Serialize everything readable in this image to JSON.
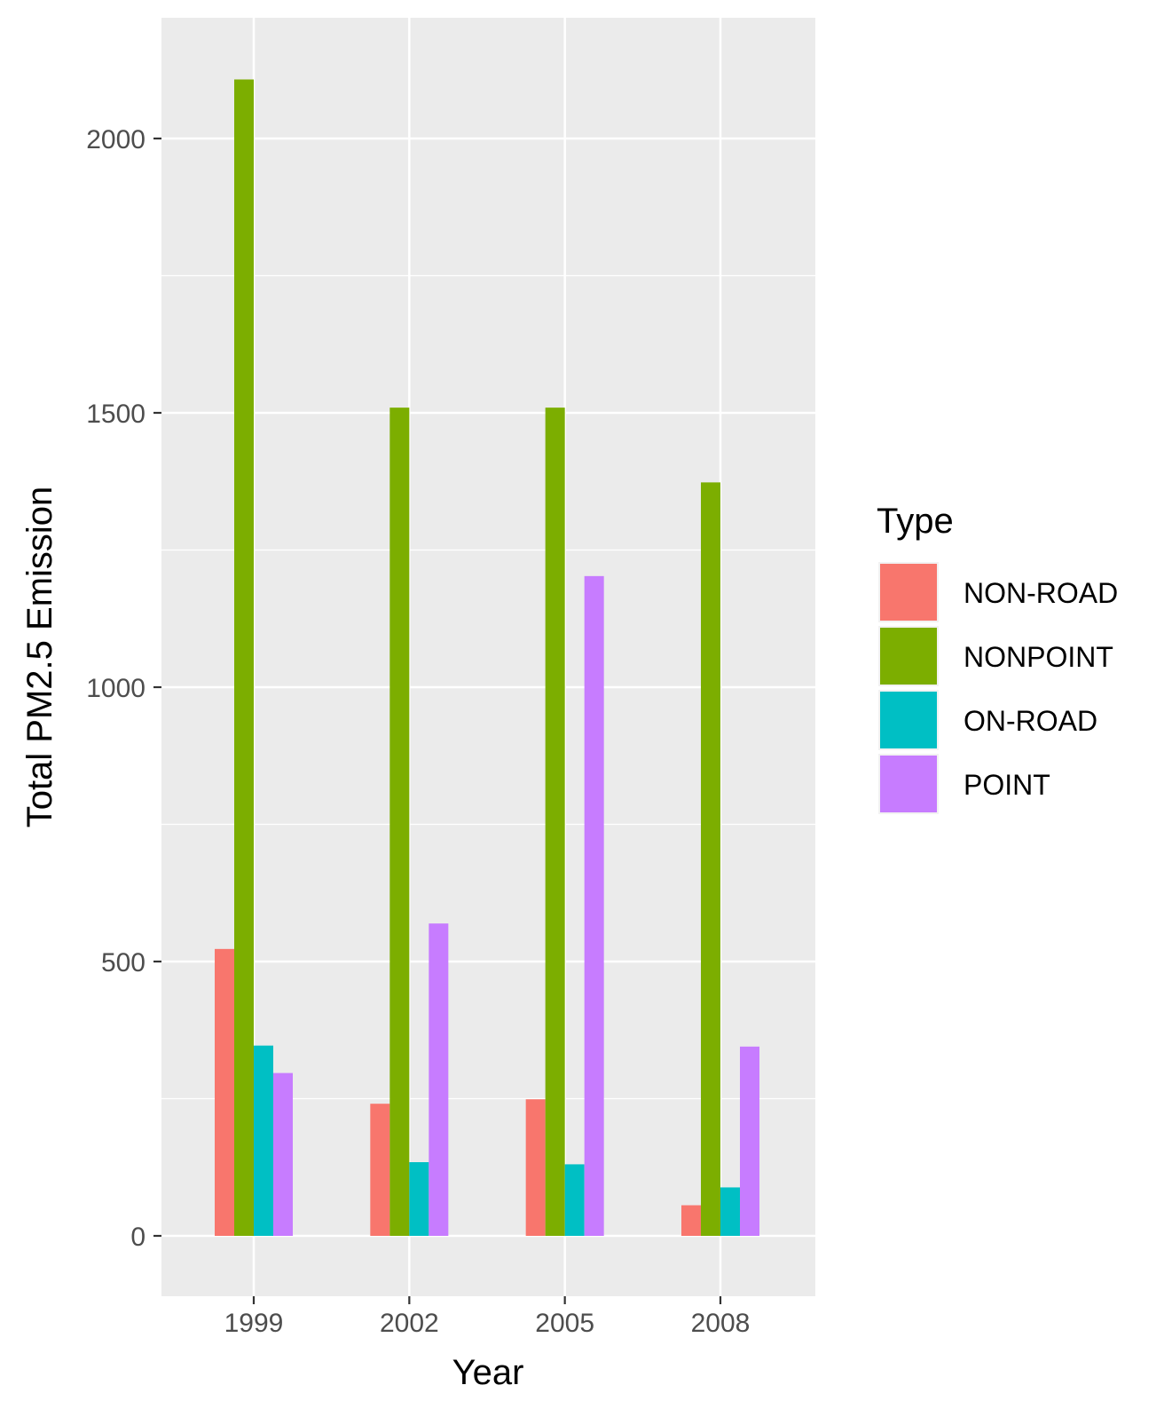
{
  "chart_data": {
    "type": "bar",
    "xlabel": "Year",
    "ylabel": "Total PM2.5 Emission",
    "categories": [
      "1999",
      "2002",
      "2005",
      "2008"
    ],
    "series": [
      {
        "name": "NON-ROAD",
        "color": "#F8766D",
        "values": [
          522.9,
          240.8,
          248.9,
          55.8
        ]
      },
      {
        "name": "NONPOINT",
        "color": "#7CAE00",
        "values": [
          2107.6,
          1509.5,
          1509.5,
          1373.2
        ]
      },
      {
        "name": "ON-ROAD",
        "color": "#00BFC4",
        "values": [
          346.8,
          134.3,
          130.4,
          88.3
        ]
      },
      {
        "name": "POINT",
        "color": "#C77CFF",
        "values": [
          296.8,
          569.3,
          1202.5,
          344.98
        ]
      }
    ],
    "yticks": [
      0,
      500,
      1000,
      1500,
      2000
    ],
    "ylim": [
      -105,
      2225
    ],
    "grid": true,
    "legend": {
      "title": "Type",
      "position": "right"
    }
  }
}
